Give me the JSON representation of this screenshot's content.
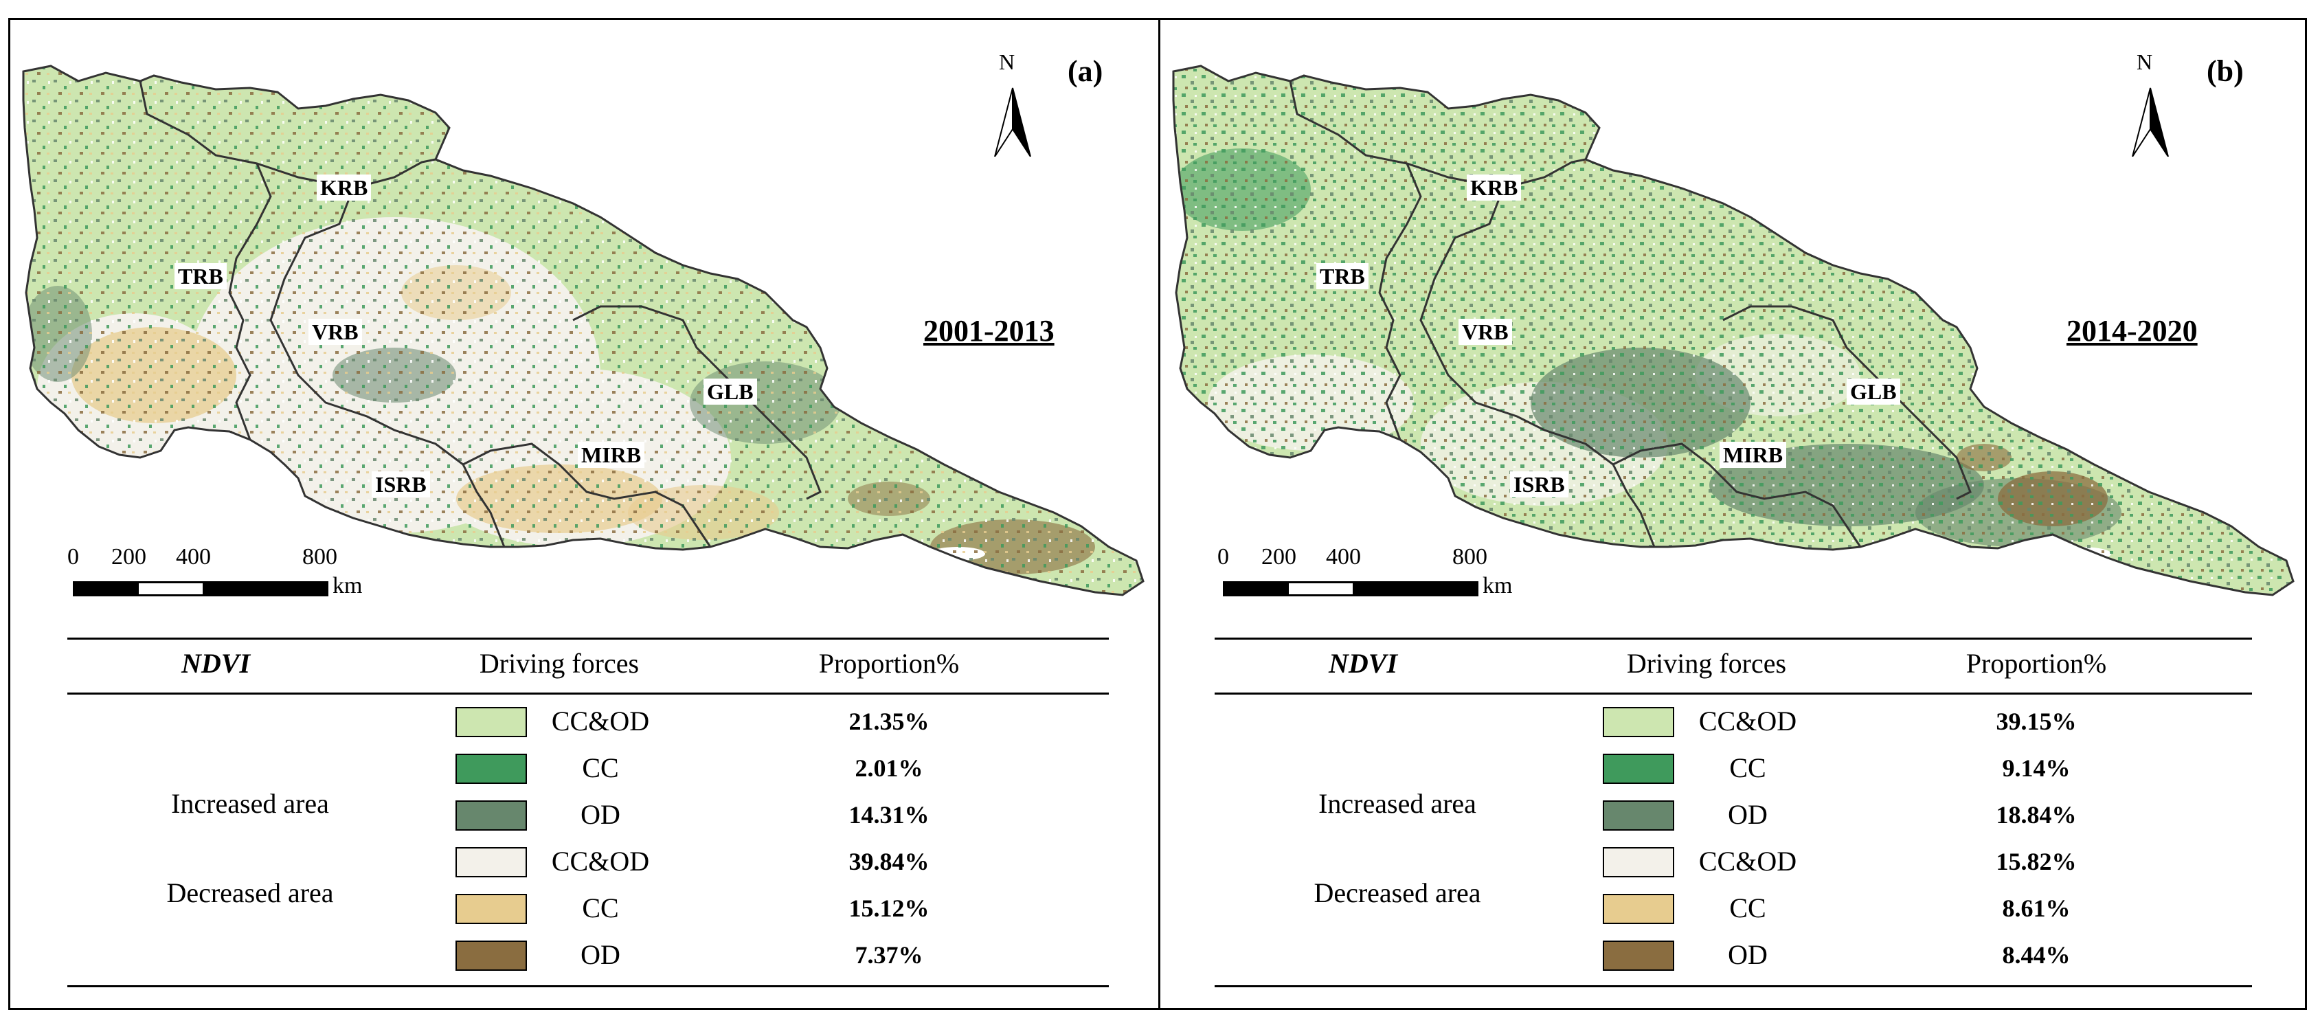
{
  "panels": [
    {
      "label": "(a)",
      "period": "2001-2013",
      "north": "N",
      "basins": [
        "KRB",
        "TRB",
        "VRB",
        "GLB",
        "MIRB",
        "ISRB"
      ],
      "scale": {
        "ticks": [
          "0",
          "200",
          "400",
          "800"
        ],
        "unit": "km"
      },
      "table": {
        "headers": [
          "NDVI",
          "Driving forces",
          "Proportion%"
        ],
        "groups": [
          "Increased area",
          "Decreased area"
        ],
        "rows": [
          {
            "force": "CC&OD",
            "value": "21.35%",
            "color": "#cde6b0"
          },
          {
            "force": "CC",
            "value": "2.01%",
            "color": "#3f9a5c"
          },
          {
            "force": "OD",
            "value": "14.31%",
            "color": "#67876d"
          },
          {
            "force": "CC&OD",
            "value": "39.84%",
            "color": "#f3f1ea"
          },
          {
            "force": "CC",
            "value": "15.12%",
            "color": "#e7cc8f"
          },
          {
            "force": "OD",
            "value": "7.37%",
            "color": "#8a6d40"
          }
        ]
      },
      "map_colors": {
        "base": "#cde6b0",
        "dark_green": "#3f9a5c",
        "grey_green": "#67876d",
        "light": "#f3f1ea",
        "tan": "#e7cc8f",
        "brown": "#8a6d40"
      }
    },
    {
      "label": "(b)",
      "period": "2014-2020",
      "north": "N",
      "basins": [
        "KRB",
        "TRB",
        "VRB",
        "GLB",
        "MIRB",
        "ISRB"
      ],
      "scale": {
        "ticks": [
          "0",
          "200",
          "400",
          "800"
        ],
        "unit": "km"
      },
      "table": {
        "headers": [
          "NDVI",
          "Driving forces",
          "Proportion%"
        ],
        "groups": [
          "Increased area",
          "Decreased area"
        ],
        "rows": [
          {
            "force": "CC&OD",
            "value": "39.15%",
            "color": "#cde6b0"
          },
          {
            "force": "CC",
            "value": "9.14%",
            "color": "#3f9a5c"
          },
          {
            "force": "OD",
            "value": "18.84%",
            "color": "#67876d"
          },
          {
            "force": "CC&OD",
            "value": "15.82%",
            "color": "#f3f1ea"
          },
          {
            "force": "CC",
            "value": "8.61%",
            "color": "#e7cc8f"
          },
          {
            "force": "OD",
            "value": "8.44%",
            "color": "#8a6d40"
          }
        ]
      },
      "map_colors": {
        "base": "#cde6b0",
        "dark_green": "#3f9a5c",
        "grey_green": "#67876d",
        "light": "#f3f1ea",
        "tan": "#e7cc8f",
        "brown": "#8a6d40"
      }
    }
  ]
}
